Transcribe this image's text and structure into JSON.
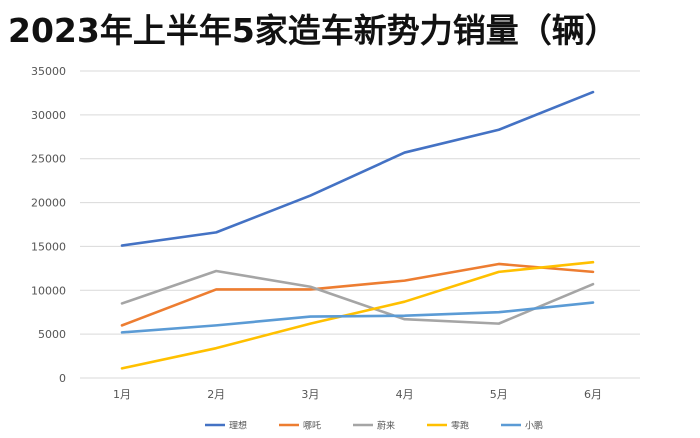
{
  "chart_data": {
    "type": "line",
    "title": "2023年上半年5家造车新势力销量（辆）",
    "categories": [
      "1月",
      "2月",
      "3月",
      "4月",
      "5月",
      "6月"
    ],
    "ylim": [
      0,
      35000
    ],
    "yticks": [
      0,
      5000,
      10000,
      15000,
      20000,
      25000,
      30000,
      35000
    ],
    "grid": true,
    "legend_position": "bottom",
    "series": [
      {
        "name": "理想",
        "color": "#4472C4",
        "values": [
          15100,
          16600,
          20800,
          25700,
          28300,
          32600
        ]
      },
      {
        "name": "哪吒",
        "color": "#ED7D31",
        "values": [
          6000,
          10100,
          10100,
          11100,
          13000,
          12100
        ]
      },
      {
        "name": "蔚来",
        "color": "#A5A5A5",
        "values": [
          8500,
          12200,
          10400,
          6700,
          6200,
          10700
        ]
      },
      {
        "name": "零跑",
        "color": "#FFC000",
        "values": [
          1100,
          3400,
          6200,
          8700,
          12100,
          13200
        ]
      },
      {
        "name": "小鹏",
        "color": "#5B9BD5",
        "values": [
          5200,
          6000,
          7000,
          7100,
          7500,
          8600
        ]
      }
    ]
  }
}
